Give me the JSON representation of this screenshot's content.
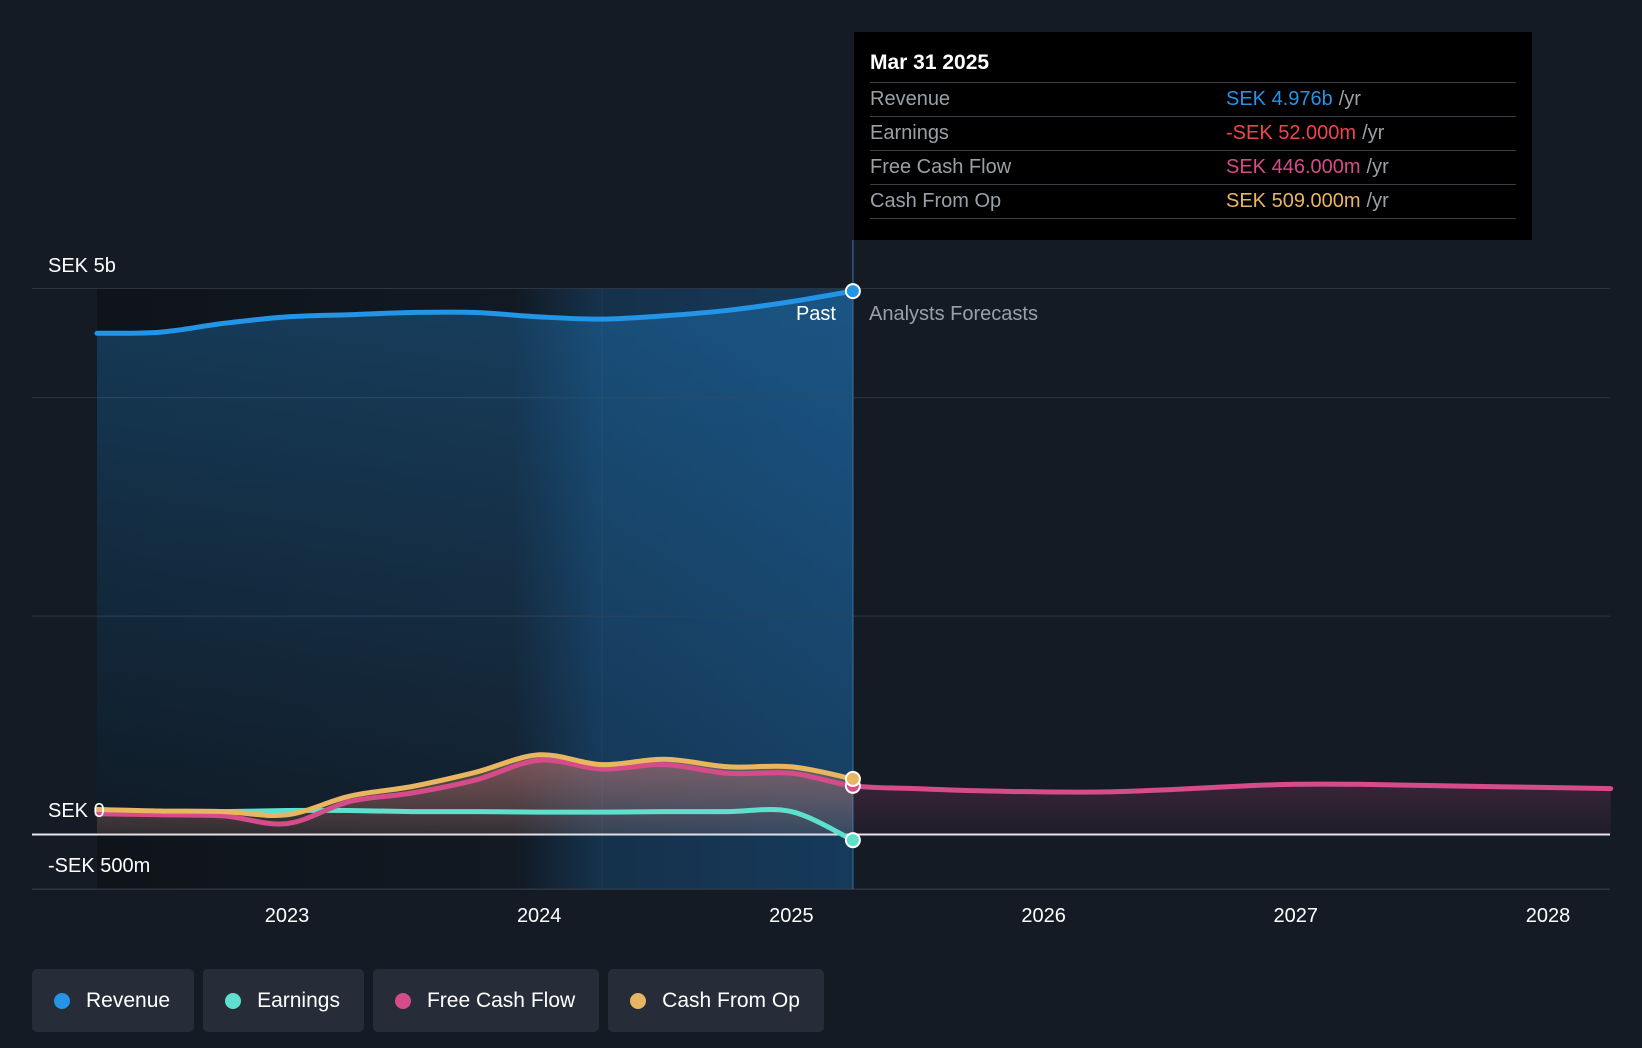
{
  "chart_data": {
    "type": "line",
    "currency_unit": "SEK",
    "x_ticks": [
      "2023",
      "2024",
      "2025",
      "2026",
      "2027",
      "2028"
    ],
    "y_tick_labels": {
      "top": "SEK 5b",
      "zero": "SEK 0",
      "bottom": "-SEK 500m"
    },
    "ylim": [
      -500,
      5000
    ],
    "past_label": "Past",
    "forecast_label": "Analysts Forecasts",
    "series": [
      {
        "name": "Revenue",
        "color": "#2394e6",
        "x": [
          "2022-04-01",
          "2022-07-01",
          "2022-10-01",
          "2023-01-01",
          "2023-04-01",
          "2023-07-01",
          "2023-10-01",
          "2024-01-01",
          "2024-04-01",
          "2024-07-01",
          "2024-10-01",
          "2025-01-01",
          "2025-03-31"
        ],
        "y": [
          4590,
          4600,
          4680,
          4740,
          4760,
          4780,
          4780,
          4740,
          4720,
          4750,
          4800,
          4880,
          4976
        ]
      },
      {
        "name": "Earnings",
        "color": "#5ee0cc",
        "x": [
          "2022-04-01",
          "2022-07-01",
          "2022-10-01",
          "2023-01-01",
          "2023-04-01",
          "2023-07-01",
          "2023-10-01",
          "2024-01-01",
          "2024-04-01",
          "2024-07-01",
          "2024-10-01",
          "2025-01-01",
          "2025-03-31"
        ],
        "y": [
          200,
          210,
          210,
          220,
          220,
          210,
          210,
          205,
          205,
          210,
          210,
          210,
          -52
        ]
      },
      {
        "name": "Free Cash Flow",
        "color": "#d64b8a",
        "x": [
          "2022-04-01",
          "2022-07-01",
          "2022-10-01",
          "2023-01-01",
          "2023-04-01",
          "2023-07-01",
          "2023-10-01",
          "2024-01-01",
          "2024-04-01",
          "2024-07-01",
          "2024-10-01",
          "2025-01-01",
          "2025-03-31",
          "2025-07-01",
          "2025-10-01",
          "2026-01-01",
          "2026-04-01",
          "2026-07-01",
          "2026-10-01",
          "2027-01-01",
          "2027-04-01",
          "2027-07-01",
          "2027-10-01",
          "2028-01-01",
          "2028-04-01"
        ],
        "y": [
          190,
          180,
          170,
          100,
          300,
          380,
          500,
          680,
          600,
          640,
          560,
          560,
          446,
          420,
          400,
          390,
          390,
          410,
          440,
          460,
          460,
          450,
          440,
          430,
          420
        ]
      },
      {
        "name": "Cash From Op",
        "color": "#e8b560",
        "x": [
          "2022-04-01",
          "2022-07-01",
          "2022-10-01",
          "2023-01-01",
          "2023-04-01",
          "2023-07-01",
          "2023-10-01",
          "2024-01-01",
          "2024-04-01",
          "2024-07-01",
          "2024-10-01",
          "2025-01-01",
          "2025-03-31"
        ],
        "y": [
          230,
          215,
          210,
          180,
          350,
          440,
          570,
          730,
          640,
          690,
          620,
          620,
          509
        ]
      }
    ],
    "tooltip": {
      "date": "Mar 31 2025",
      "rows": [
        {
          "label": "Revenue",
          "value": "SEK 4.976b",
          "unit": "/yr",
          "color": "#2394e6"
        },
        {
          "label": "Earnings",
          "value": "-SEK 52.000m",
          "unit": "/yr",
          "color": "#f0444c"
        },
        {
          "label": "Free Cash Flow",
          "value": "SEK 446.000m",
          "unit": "/yr",
          "color": "#d64b8a"
        },
        {
          "label": "Cash From Op",
          "value": "SEK 509.000m",
          "unit": "/yr",
          "color": "#e8b560"
        }
      ]
    },
    "legend": [
      {
        "label": "Revenue",
        "color": "#2394e6"
      },
      {
        "label": "Earnings",
        "color": "#5ee0cc"
      },
      {
        "label": "Free Cash Flow",
        "color": "#d64b8a"
      },
      {
        "label": "Cash From Op",
        "color": "#e8b560"
      }
    ]
  }
}
